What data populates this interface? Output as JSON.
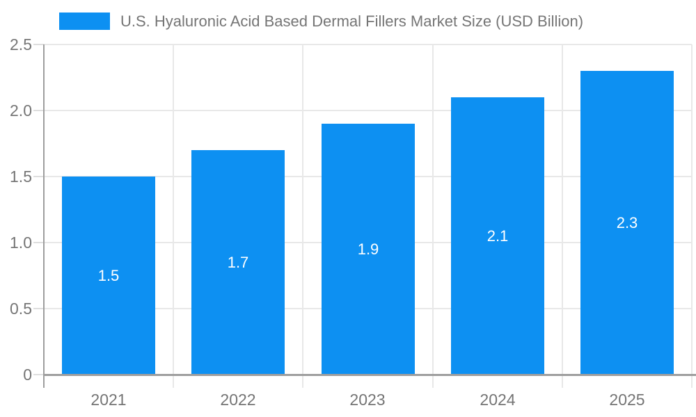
{
  "chart_data": {
    "type": "bar",
    "title": "U.S. Hyaluronic Acid Based Dermal Fillers Market Size (USD Billion)",
    "categories": [
      "2021",
      "2022",
      "2023",
      "2024",
      "2025"
    ],
    "values": [
      1.5,
      1.7,
      1.9,
      2.1,
      2.3
    ],
    "value_labels": [
      "1.5",
      "1.7",
      "1.9",
      "2.1",
      "2.3"
    ],
    "xlabel": "",
    "ylabel": "",
    "ylim": [
      0,
      2.5
    ],
    "yticks": [
      0,
      0.5,
      1.0,
      1.5,
      2.0,
      2.5
    ],
    "ytick_labels": [
      "0",
      "0.5",
      "1.0",
      "1.5",
      "2.0",
      "2.5"
    ],
    "grid": true,
    "legend_position": "top"
  },
  "colors": {
    "bar": "#0d90f2",
    "bar_label": "#ffffff",
    "axis_line": "#9e9e9e",
    "zero_line": "#9e9e9e",
    "gridline": "#e8e8e8",
    "tick": "#dedede",
    "label_text": "#757575"
  }
}
